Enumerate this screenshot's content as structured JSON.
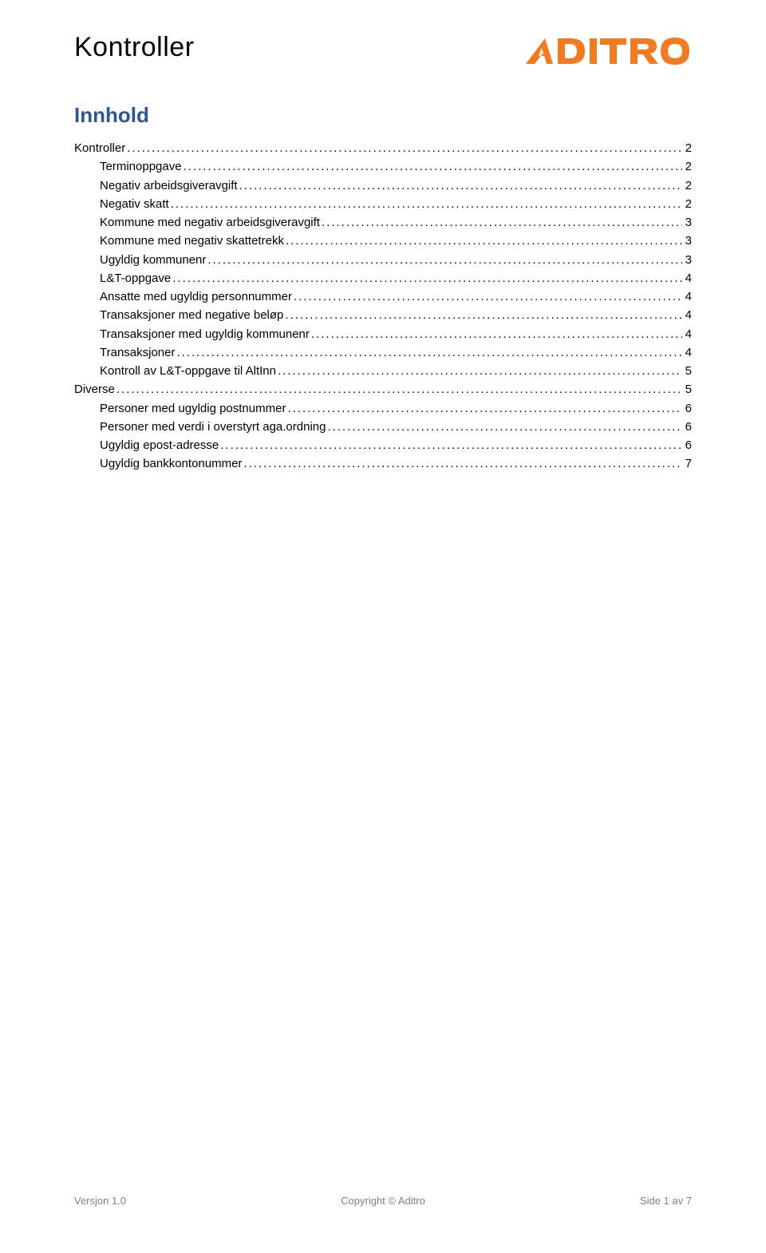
{
  "doc_title": "Kontroller",
  "logo_text": "ADITRO",
  "logo_color": "#f47a20",
  "section_heading": "Innhold",
  "heading_color": "#2b5698",
  "toc": [
    {
      "label": "Kontroller",
      "page": "2",
      "indent": false
    },
    {
      "label": "Terminoppgave",
      "page": "2",
      "indent": true
    },
    {
      "label": "Negativ arbeidsgiveravgift",
      "page": "2",
      "indent": true
    },
    {
      "label": "Negativ skatt",
      "page": "2",
      "indent": true
    },
    {
      "label": "Kommune med negativ arbeidsgiveravgift",
      "page": "3",
      "indent": true
    },
    {
      "label": "Kommune med negativ skattetrekk",
      "page": "3",
      "indent": true
    },
    {
      "label": "Ugyldig kommunenr",
      "page": "3",
      "indent": true
    },
    {
      "label": "L&T-oppgave",
      "page": "4",
      "indent": true
    },
    {
      "label": "Ansatte med ugyldig personnummer",
      "page": "4",
      "indent": true
    },
    {
      "label": "Transaksjoner med negative beløp",
      "page": "4",
      "indent": true
    },
    {
      "label": "Transaksjoner med ugyldig kommunenr",
      "page": "4",
      "indent": true
    },
    {
      "label": "Transaksjoner",
      "page": "4",
      "indent": true
    },
    {
      "label": "Kontroll av L&T-oppgave til AltInn",
      "page": "5",
      "indent": true
    },
    {
      "label": "Diverse",
      "page": "5",
      "indent": false
    },
    {
      "label": "Personer med ugyldig postnummer",
      "page": "6",
      "indent": true
    },
    {
      "label": "Personer med verdi i overstyrt aga.ordning",
      "page": "6",
      "indent": true
    },
    {
      "label": "Ugyldig epost-adresse",
      "page": "6",
      "indent": true
    },
    {
      "label": "Ugyldig bankkontonummer",
      "page": "7",
      "indent": true
    }
  ],
  "footer": {
    "left": "Versjon 1.0",
    "center": "Copyright © Aditro",
    "right": "Side 1 av 7",
    "color": "#808080"
  }
}
